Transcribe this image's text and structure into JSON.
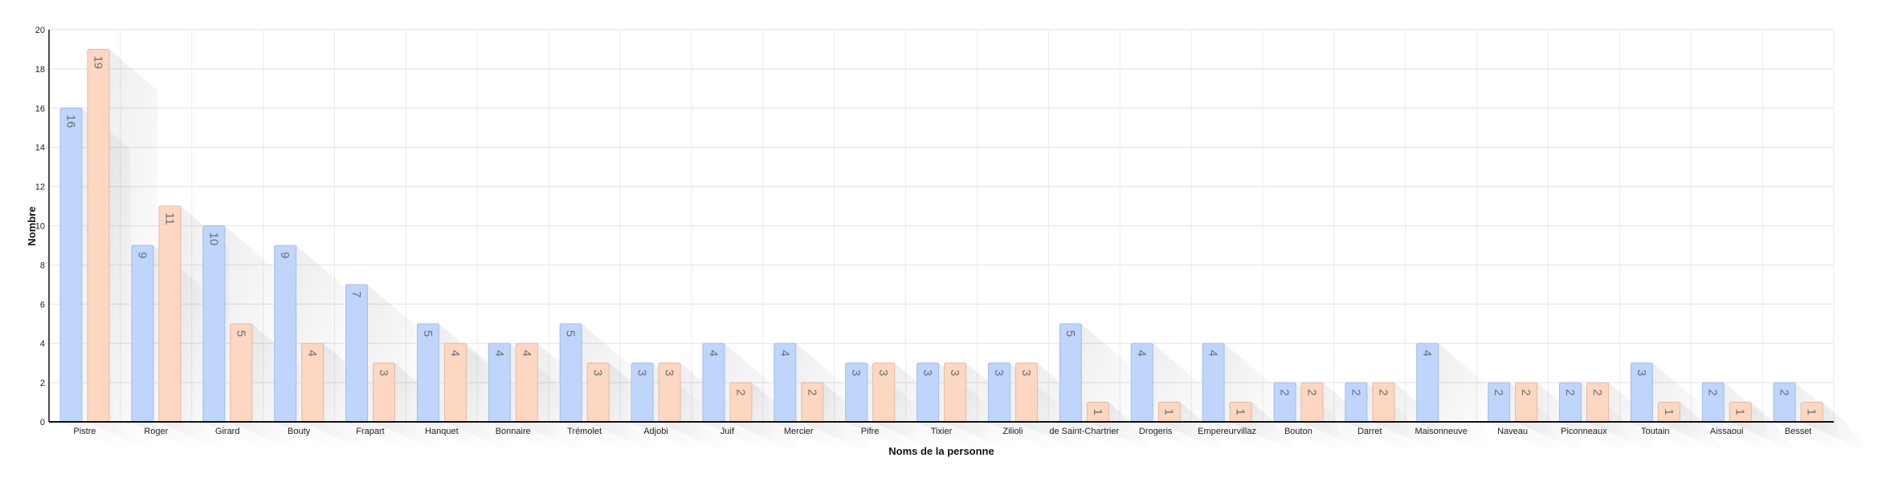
{
  "chart_data": {
    "type": "bar",
    "title": "",
    "xlabel": "Noms de la personne",
    "ylabel": "Nombre",
    "ylim": [
      0,
      20
    ],
    "yticks": [
      0,
      2,
      4,
      6,
      8,
      10,
      12,
      14,
      16,
      18,
      20
    ],
    "grid": true,
    "legend": "none",
    "categories": [
      "Pistre",
      "Roger",
      "Girard",
      "Bouty",
      "Frapart",
      "Hanquet",
      "Bonnaire",
      "Trémolet",
      "Adjobi",
      "Juif",
      "Mercier",
      "Pifre",
      "Tixier",
      "Zilioli",
      "de Saint-Chartrier",
      "Drogeris",
      "Empereurvillaz",
      "Bouton",
      "Darret",
      "Maisonneuve",
      "Naveau",
      "Piconneaux",
      "Toutain",
      "Aissaoui",
      "Besset"
    ],
    "series": [
      {
        "values": [
          16,
          9,
          10,
          9,
          7,
          5,
          4,
          5,
          3,
          4,
          4,
          3,
          3,
          3,
          5,
          4,
          4,
          2,
          2,
          4,
          2,
          2,
          3,
          2,
          2
        ],
        "color": "#bfd5fb",
        "border": "#a3bde6"
      },
      {
        "values": [
          19,
          11,
          5,
          4,
          3,
          4,
          4,
          3,
          3,
          2,
          2,
          3,
          3,
          3,
          1,
          1,
          1,
          2,
          2,
          0,
          2,
          2,
          1,
          1,
          1
        ],
        "color": "#fdd7c1",
        "border": "#e3b9a2"
      }
    ]
  }
}
